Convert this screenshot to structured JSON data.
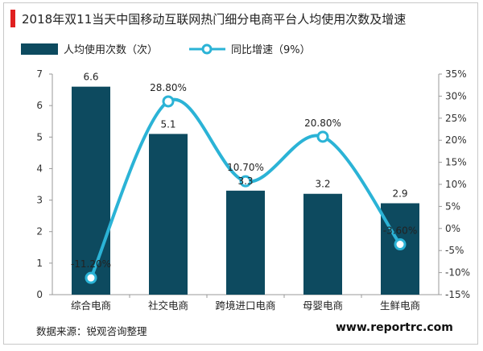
{
  "title": "2018年双11当天中国移动互联网热门细分电商平台人均使用次数及增速",
  "source": "数据来源：锐观咨询整理",
  "website": "www.reportrc.com",
  "colors": {
    "bar": "#0d4a5f",
    "line": "#2bb3d6",
    "accent": "#e02020"
  },
  "chart_data": {
    "type": "bar",
    "categories": [
      "综合电商",
      "社交电商",
      "跨境进口电商",
      "母婴电商",
      "生鲜电商"
    ],
    "series": [
      {
        "name": "人均使用次数（次）",
        "type": "bar",
        "axis": "left",
        "values": [
          6.6,
          5.1,
          3.3,
          3.2,
          2.9
        ],
        "labels": [
          "6.6",
          "5.1",
          "3.3",
          "3.2",
          "2.9"
        ]
      },
      {
        "name": "同比增速（9%）",
        "type": "line",
        "axis": "right",
        "values": [
          -11.2,
          28.8,
          10.7,
          20.8,
          -3.6
        ],
        "labels": [
          "-11.20%",
          "28.80%",
          "10.70%",
          "20.80%",
          "-3.60%"
        ]
      }
    ],
    "y_left": {
      "min": 0,
      "max": 7,
      "ticks": [
        "0",
        "1",
        "2",
        "3",
        "4",
        "5",
        "6",
        "7"
      ]
    },
    "y_right": {
      "min": -15,
      "max": 35,
      "ticks": [
        "-15%",
        "-10%",
        "-5%",
        "0%",
        "5%",
        "10%",
        "15%",
        "20%",
        "25%",
        "30%",
        "35%"
      ]
    },
    "legend": "top-left",
    "grid": false
  }
}
